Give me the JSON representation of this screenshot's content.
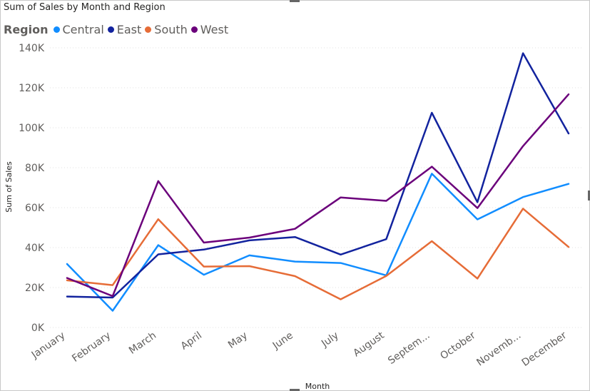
{
  "chart_data": {
    "type": "line",
    "title": "Sum of Sales by Month and Region",
    "xlabel": "Month",
    "ylabel": "Sum of Sales",
    "legend_title": "Region",
    "legend_position": "top-left",
    "grid": true,
    "ylim": [
      0,
      140000
    ],
    "y_ticks": [
      0,
      20000,
      40000,
      60000,
      80000,
      100000,
      120000,
      140000
    ],
    "y_tick_labels": [
      "0K",
      "20K",
      "40K",
      "60K",
      "80K",
      "100K",
      "120K",
      "140K"
    ],
    "categories": [
      "January",
      "February",
      "March",
      "April",
      "May",
      "June",
      "July",
      "August",
      "Septem...",
      "October",
      "Novemb...",
      "December"
    ],
    "series": [
      {
        "name": "Central",
        "color": "#118DFF",
        "values": [
          31800,
          8400,
          41200,
          26400,
          36100,
          33000,
          32300,
          26100,
          77000,
          54100,
          65300,
          71900
        ]
      },
      {
        "name": "East",
        "color": "#12239E",
        "values": [
          15500,
          15000,
          36600,
          39000,
          43600,
          45300,
          36500,
          44200,
          107500,
          62700,
          137300,
          97100
        ]
      },
      {
        "name": "South",
        "color": "#E66C37",
        "values": [
          23600,
          21200,
          54200,
          30500,
          30700,
          25700,
          14100,
          25800,
          43200,
          24500,
          59500,
          40300
        ]
      },
      {
        "name": "West",
        "color": "#6B007B",
        "values": [
          24800,
          15700,
          73300,
          42500,
          45000,
          49400,
          65100,
          63400,
          80500,
          59800,
          90800,
          116700
        ]
      }
    ]
  }
}
